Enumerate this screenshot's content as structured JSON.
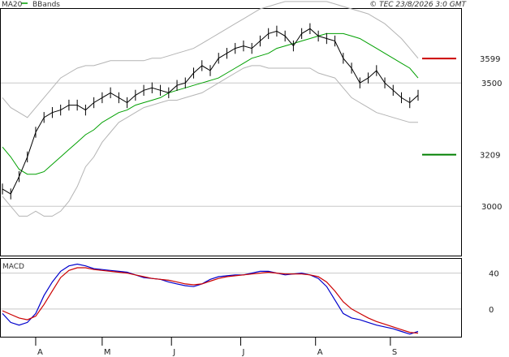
{
  "header": {
    "legend_ma": "MA20",
    "legend_bb": "BBands",
    "copyright": "© TEC 23/8/2026 3:0 GMT"
  },
  "colors": {
    "price": "#000000",
    "ma20": "#00a000",
    "bbands": "#b4b4b4",
    "resistance": "#cc0000",
    "support": "#008000",
    "macd_line": "#0000cc",
    "signal_line": "#cc0000",
    "grid": "#c8c8c8"
  },
  "chart_data": [
    {
      "type": "line",
      "panel": "price",
      "ylim": [
        2800,
        3800
      ],
      "yticks": [
        3000,
        3500
      ],
      "ytick_labels": [
        "3000",
        "3500"
      ],
      "levels": [
        {
          "label": "3599",
          "value": 3599,
          "color": "#cc0000"
        },
        {
          "label": "3209",
          "value": 3209,
          "color": "#008000"
        }
      ],
      "x": [
        0,
        3,
        6,
        9,
        12,
        15,
        18,
        21,
        24,
        27,
        30,
        33,
        36,
        39,
        42,
        45,
        48,
        51,
        54,
        57,
        60,
        63,
        66,
        69,
        72,
        75,
        78,
        81,
        84,
        87,
        90,
        93,
        96,
        99,
        102,
        105,
        108,
        111,
        114,
        117,
        120,
        123,
        126,
        129,
        132,
        135,
        138,
        141,
        144,
        147,
        150
      ],
      "series": [
        {
          "name": "MA20",
          "values": [
            3240,
            3200,
            3150,
            3130,
            3130,
            3140,
            3170,
            3200,
            3230,
            3260,
            3290,
            3310,
            3340,
            3360,
            3380,
            3390,
            3410,
            3420,
            3430,
            3440,
            3460,
            3470,
            3480,
            3490,
            3500,
            3510,
            3520,
            3540,
            3560,
            3580,
            3600,
            3610,
            3620,
            3640,
            3650,
            3660,
            3670,
            3680,
            3690,
            3700,
            3700,
            3700,
            3690,
            3680,
            3660,
            3640,
            3620,
            3600,
            3580,
            3560,
            3520
          ]
        },
        {
          "name": "BBands upper",
          "values": [
            3440,
            3400,
            3380,
            3360,
            3400,
            3440,
            3480,
            3520,
            3540,
            3560,
            3570,
            3570,
            3580,
            3590,
            3590,
            3590,
            3590,
            3590,
            3600,
            3600,
            3610,
            3620,
            3630,
            3640,
            3660,
            3680,
            3700,
            3720,
            3740,
            3760,
            3780,
            3800,
            3810,
            3820,
            3830,
            3830,
            3830,
            3830,
            3830,
            3830,
            3820,
            3810,
            3800,
            3790,
            3780,
            3760,
            3740,
            3710,
            3680,
            3640,
            3600
          ]
        },
        {
          "name": "BBands lower",
          "values": [
            3040,
            3000,
            2960,
            2960,
            2980,
            2960,
            2960,
            2980,
            3020,
            3080,
            3160,
            3200,
            3260,
            3300,
            3340,
            3360,
            3380,
            3400,
            3410,
            3420,
            3430,
            3430,
            3440,
            3450,
            3460,
            3480,
            3500,
            3520,
            3540,
            3560,
            3570,
            3570,
            3560,
            3560,
            3560,
            3560,
            3560,
            3560,
            3540,
            3530,
            3520,
            3480,
            3440,
            3420,
            3400,
            3380,
            3370,
            3360,
            3350,
            3340,
            3340
          ]
        },
        {
          "name": "Price",
          "values": [
            3070,
            3050,
            3120,
            3200,
            3300,
            3360,
            3380,
            3390,
            3410,
            3410,
            3390,
            3420,
            3440,
            3460,
            3440,
            3420,
            3450,
            3470,
            3480,
            3470,
            3460,
            3490,
            3500,
            3540,
            3570,
            3550,
            3600,
            3620,
            3640,
            3650,
            3640,
            3670,
            3700,
            3710,
            3690,
            3650,
            3700,
            3720,
            3690,
            3680,
            3670,
            3600,
            3560,
            3500,
            3520,
            3550,
            3500,
            3470,
            3440,
            3420,
            3450
          ]
        }
      ]
    },
    {
      "type": "line",
      "panel": "macd",
      "title": "MACD",
      "ylim": [
        -30,
        55
      ],
      "yticks": [
        40,
        0
      ],
      "ytick_labels": [
        "40",
        "0"
      ],
      "x": [
        0,
        3,
        6,
        9,
        12,
        15,
        18,
        21,
        24,
        27,
        30,
        33,
        36,
        39,
        42,
        45,
        48,
        51,
        54,
        57,
        60,
        63,
        66,
        69,
        72,
        75,
        78,
        81,
        84,
        87,
        90,
        93,
        96,
        99,
        102,
        105,
        108,
        111,
        114,
        117,
        120,
        123,
        126,
        129,
        132,
        135,
        138,
        141,
        144,
        147,
        150
      ],
      "series": [
        {
          "name": "MACD",
          "values": [
            -5,
            -15,
            -18,
            -15,
            -5,
            15,
            30,
            42,
            48,
            50,
            48,
            45,
            44,
            43,
            42,
            41,
            38,
            35,
            34,
            33,
            30,
            28,
            26,
            25,
            28,
            33,
            36,
            37,
            38,
            38,
            40,
            42,
            42,
            40,
            38,
            39,
            40,
            38,
            34,
            25,
            10,
            -5,
            -10,
            -12,
            -15,
            -18,
            -20,
            -22,
            -25,
            -28,
            -25
          ]
        },
        {
          "name": "Signal",
          "values": [
            -2,
            -6,
            -10,
            -12,
            -8,
            5,
            20,
            35,
            43,
            46,
            46,
            44,
            43,
            42,
            41,
            40,
            38,
            36,
            34,
            33,
            32,
            30,
            28,
            27,
            28,
            31,
            34,
            36,
            37,
            38,
            39,
            40,
            41,
            40,
            39,
            39,
            39,
            38,
            36,
            30,
            20,
            8,
            0,
            -5,
            -10,
            -14,
            -17,
            -20,
            -23,
            -26,
            -27
          ]
        }
      ]
    }
  ],
  "xaxis": {
    "month_labels": [
      {
        "label": "A",
        "x": 12
      },
      {
        "label": "M",
        "x": 36
      },
      {
        "label": "J",
        "x": 61
      },
      {
        "label": "J",
        "x": 86
      },
      {
        "label": "A",
        "x": 113
      },
      {
        "label": "S",
        "x": 140
      }
    ]
  }
}
